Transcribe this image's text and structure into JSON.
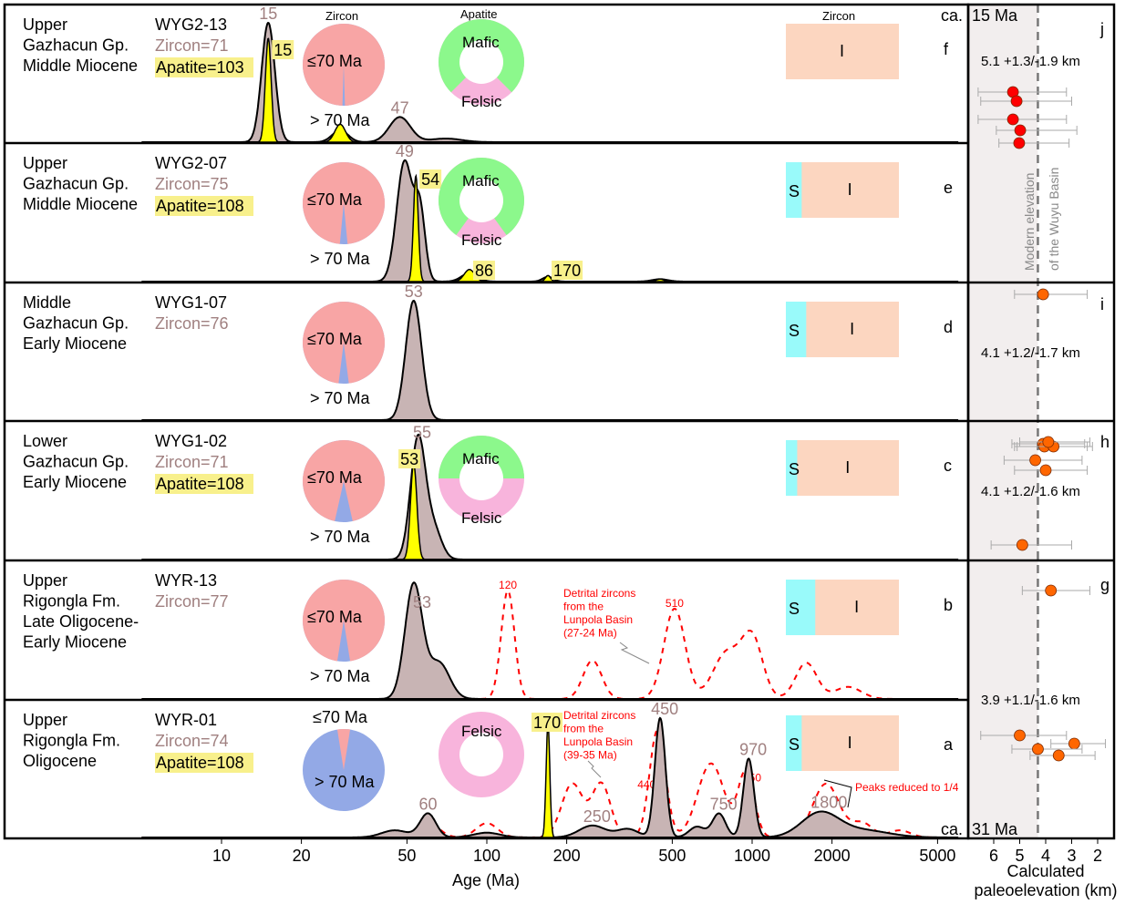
{
  "chart_data": {
    "type": "area",
    "xlabel": "Age (Ma)",
    "x_scale": "log",
    "xlim": [
      5,
      6000
    ],
    "x_ticks": [
      10,
      20,
      50,
      100,
      200,
      500,
      1000,
      2000,
      5000
    ],
    "headers": {
      "zircon_pie": "Zircon",
      "apatite_pie": "Apatite",
      "zircon_bar": "Zircon"
    },
    "top_age": {
      "prefix": "ca.",
      "value": "15 Ma"
    },
    "bottom_age": {
      "prefix": "ca.",
      "value": "31 Ma"
    },
    "colors": {
      "zircon_kde": "#c8b4b4",
      "apatite_kde": "#ffff00",
      "lunpola": "#ff0000",
      "le70": "#f8a5a5",
      "gt70": "#93a9e6",
      "mafic": "#8cf88c",
      "felsic": "#f8b4dc",
      "s_type": "#8cf8f8",
      "i_type": "#fcd6c0",
      "zircon_label": "#a08080",
      "apatite_label_bg": "#f8f08c"
    },
    "rows": [
      {
        "panel": "f",
        "unit": [
          "Upper",
          "Gazhacun Gp.",
          "Middle Miocene"
        ],
        "sample": "WYG2-13",
        "zircon_n": "Zircon=71",
        "apatite_n": "Apatite=103",
        "zircon_peaks": [
          [
            15,
            1.0,
            0.025
          ],
          [
            28,
            0.1,
            0.03
          ],
          [
            47,
            0.21,
            0.04
          ],
          [
            70,
            0.03,
            0.06
          ]
        ],
        "apatite_peaks": [
          [
            15,
            0.87,
            0.011
          ],
          [
            28,
            0.15,
            0.02
          ]
        ],
        "zircon_labels": [
          "15",
          "47"
        ],
        "zircon_label_ages": [
          15,
          47
        ],
        "apatite_labels": [
          "15"
        ],
        "apatite_label_ages": [
          15
        ],
        "pie_le70": 0.99,
        "pie_labels": [
          "≤70  Ma",
          "> 70  Ma"
        ],
        "mafic": 0.75,
        "donut_labels": [
          "Mafic",
          "Felsic"
        ],
        "s_frac": 0,
        "bar_labels": [
          "",
          "I"
        ]
      },
      {
        "panel": "e",
        "unit": [
          "Upper",
          "Gazhacun Gp.",
          "Middle Miocene"
        ],
        "sample": "WYG2-07",
        "zircon_n": "Zircon=75",
        "apatite_n": "Apatite=108",
        "zircon_peaks": [
          [
            49,
            1.0,
            0.03
          ],
          [
            56,
            0.55,
            0.02
          ],
          [
            86,
            0.07,
            0.03
          ],
          [
            170,
            0.04,
            0.02
          ],
          [
            450,
            0.02,
            0.03
          ]
        ],
        "apatite_peaks": [
          [
            54,
            0.88,
            0.009
          ],
          [
            86,
            0.1,
            0.02
          ],
          [
            170,
            0.05,
            0.01
          ],
          [
            450,
            0.02,
            0.015
          ]
        ],
        "zircon_labels": [
          "49"
        ],
        "zircon_label_ages": [
          49
        ],
        "apatite_labels": [
          "54",
          "86",
          "170"
        ],
        "apatite_label_ages": [
          54,
          86,
          170
        ],
        "pie_le70": 0.97,
        "pie_labels": [
          "≤70  Ma",
          "> 70  Ma"
        ],
        "mafic": 0.8,
        "donut_labels": [
          "Mafic",
          "Felsic"
        ],
        "s_frac": 0.14,
        "bar_labels": [
          "S",
          "I"
        ]
      },
      {
        "panel": "d",
        "unit": [
          "Middle",
          "Gazhacun Gp.",
          "Early Miocene"
        ],
        "sample": "WYG1-07",
        "zircon_n": "Zircon=76",
        "apatite_n": "",
        "zircon_peaks": [
          [
            53,
            1.0,
            0.03
          ]
        ],
        "apatite_peaks": [],
        "zircon_labels": [
          "53"
        ],
        "zircon_label_ages": [
          53
        ],
        "apatite_labels": [],
        "apatite_label_ages": [],
        "pie_le70": 0.96,
        "pie_labels": [
          "≤70  Ma",
          "> 70  Ma"
        ],
        "mafic": null,
        "donut_labels": [],
        "s_frac": 0.18,
        "bar_labels": [
          "S",
          "I"
        ]
      },
      {
        "panel": "c",
        "unit": [
          "Lower",
          "Gazhacun Gp.",
          "Early Miocene"
        ],
        "sample": "WYG1-02",
        "zircon_n": "Zircon=71",
        "apatite_n": "Apatite=108",
        "zircon_peaks": [
          [
            55,
            1.0,
            0.028
          ],
          [
            63,
            0.25,
            0.03
          ]
        ],
        "apatite_peaks": [
          [
            53,
            0.8,
            0.012
          ]
        ],
        "zircon_labels": [
          "55"
        ],
        "zircon_label_ages": [
          57
        ],
        "apatite_labels": [
          "53"
        ],
        "apatite_label_ages": [
          45
        ],
        "pie_le70": 0.93,
        "pie_labels": [
          "≤70  Ma",
          "> 70  Ma"
        ],
        "mafic": 0.5,
        "donut_labels": [
          "Mafic",
          "Felsic"
        ],
        "s_frac": 0.1,
        "bar_labels": [
          "S",
          "I"
        ]
      },
      {
        "panel": "b",
        "unit": [
          "Upper",
          "Rigongla Fm.",
          "Late Oligocene-",
          "Early Miocene"
        ],
        "sample": "WYR-13",
        "zircon_n": "Zircon=77",
        "apatite_n": "",
        "zircon_peaks": [
          [
            53,
            0.95,
            0.033
          ],
          [
            66,
            0.3,
            0.04
          ]
        ],
        "apatite_peaks": [],
        "lunpola_peaks": [
          [
            120,
            0.9,
            0.025
          ],
          [
            250,
            0.32,
            0.035
          ],
          [
            510,
            0.75,
            0.04
          ],
          [
            800,
            0.38,
            0.05
          ],
          [
            1000,
            0.5,
            0.04
          ],
          [
            1600,
            0.3,
            0.04
          ],
          [
            2300,
            0.1,
            0.05
          ]
        ],
        "lunpola_labels": [
          "120",
          "510"
        ],
        "lunpola_label_ages": [
          120,
          510
        ],
        "lunpola_note": [
          "Detrital zircons",
          "from the",
          "Lunpola Basin",
          "(27-24 Ma)"
        ],
        "zircon_labels": [
          "53"
        ],
        "zircon_label_ages": [
          57
        ],
        "apatite_labels": [],
        "apatite_label_ages": [],
        "pie_le70": 0.95,
        "pie_labels": [
          "≤70  Ma",
          "> 70  Ma"
        ],
        "mafic": null,
        "donut_labels": [],
        "s_frac": 0.26,
        "bar_labels": [
          "S",
          "I"
        ]
      },
      {
        "panel": "a",
        "unit": [
          "Upper",
          "Rigongla Fm.",
          "Oligocene"
        ],
        "sample": "WYR-01",
        "zircon_n": "Zircon=74",
        "apatite_n": "Apatite=108",
        "zircon_peaks": [
          [
            45,
            0.06,
            0.05
          ],
          [
            60,
            0.2,
            0.03
          ],
          [
            100,
            0.04,
            0.05
          ],
          [
            250,
            0.1,
            0.05
          ],
          [
            340,
            0.07,
            0.04
          ],
          [
            450,
            1.0,
            0.02
          ],
          [
            620,
            0.09,
            0.03
          ],
          [
            750,
            0.2,
            0.025
          ],
          [
            970,
            0.66,
            0.02
          ],
          [
            1800,
            0.2,
            0.07
          ],
          [
            2600,
            0.06,
            0.1
          ]
        ],
        "apatite_peaks": [
          [
            170,
            0.95,
            0.007
          ]
        ],
        "lunpola_peaks": [
          [
            60,
            0.13,
            0.04
          ],
          [
            100,
            0.12,
            0.04
          ],
          [
            210,
            0.45,
            0.04
          ],
          [
            270,
            0.45,
            0.035
          ],
          [
            440,
            0.9,
            0.03
          ],
          [
            700,
            0.62,
            0.05
          ],
          [
            950,
            0.55,
            0.03
          ],
          [
            1900,
            0.45,
            0.05
          ],
          [
            2600,
            0.12,
            0.04
          ],
          [
            3600,
            0.06,
            0.04
          ]
        ],
        "lunpola_labels": [
          "440",
          "950"
        ],
        "lunpola_label_ages": [
          400,
          1000
        ],
        "lunpola_note": [
          "Detrital zircons",
          "from the",
          "Lunpola Basin",
          "(39-35 Ma)"
        ],
        "peaks_note": "Peaks reduced to 1/4",
        "zircon_labels": [
          "60",
          "250",
          "450",
          "750",
          "970",
          "1800"
        ],
        "zircon_label_ages": [
          60,
          250,
          450,
          750,
          970,
          1800
        ],
        "apatite_labels": [
          "170"
        ],
        "apatite_label_ages": [
          170
        ],
        "pie_le70": 0.05,
        "pie_labels": [
          "≤70  Ma",
          "> 70  Ma"
        ],
        "mafic": 0,
        "donut_labels": [
          "",
          "Felsic"
        ],
        "s_frac": 0.14,
        "bar_labels": [
          "S",
          "I"
        ]
      }
    ],
    "elevation": {
      "xlabel": [
        "Calculated",
        "paleoelevation (km)"
      ],
      "x_ticks": [
        6,
        5,
        4,
        3,
        2
      ],
      "xlim": [
        7,
        1.4
      ],
      "reversed": true,
      "modern_elevation_km": 4.3,
      "modern_label": [
        "Modern elevation",
        "of the Wuyu Basin"
      ],
      "panels": [
        {
          "panel": "j",
          "summary": "5.1 +1.3/-1.9 km",
          "color": "#ff0000",
          "points": [
            [
              5.26,
              6.6,
              3.2
            ],
            [
              5.12,
              6.5,
              3.0
            ],
            [
              5.26,
              6.6,
              3.2
            ],
            [
              4.98,
              5.9,
              2.8
            ],
            [
              5.02,
              5.8,
              3.1
            ]
          ]
        },
        {
          "panel": "i",
          "summary": "4.1 +1.2/-1.7 km",
          "color": "#ff6600",
          "points": [
            [
              4.1,
              5.2,
              2.4
            ]
          ]
        },
        {
          "panel": "h",
          "summary": "4.1 +1.2/-1.6 km",
          "color": "#ff6600",
          "points": [
            [
              4.1,
              5.3,
              2.5
            ],
            [
              4.05,
              5.2,
              2.4
            ],
            [
              3.7,
              5.1,
              2.2
            ],
            [
              3.9,
              5.0,
              2.3
            ],
            [
              4.4,
              5.6,
              2.6
            ],
            [
              4.9,
              6.1,
              3.0
            ],
            [
              4.0,
              5.2,
              2.4
            ]
          ]
        },
        {
          "panel": "g",
          "summary": "3.9 +1.1/-1.6 km",
          "color": "#ff6600",
          "points": [
            [
              3.8,
              4.9,
              2.3
            ],
            [
              5.0,
              6.5,
              3.2
            ],
            [
              2.9,
              3.8,
              1.7
            ],
            [
              4.3,
              5.3,
              2.6
            ],
            [
              3.5,
              4.6,
              2.1
            ]
          ]
        }
      ]
    }
  }
}
